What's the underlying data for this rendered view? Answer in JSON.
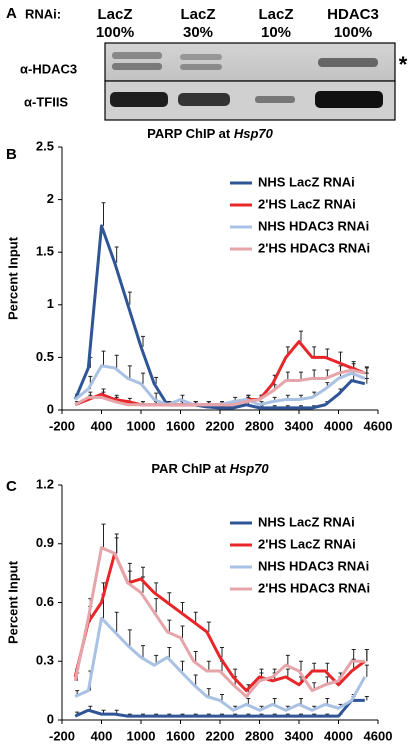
{
  "blot": {
    "panel": "A",
    "rnai_label": "RNAi:",
    "lanes": [
      {
        "name": "LacZ",
        "amount": "100%"
      },
      {
        "name": "LacZ",
        "amount": "30%"
      },
      {
        "name": "LacZ",
        "amount": "10%"
      },
      {
        "name": "HDAC3",
        "amount": "100%"
      }
    ],
    "antibodies": [
      "α-HDAC3",
      "α-TFIIS"
    ],
    "marker": "*"
  },
  "chart_data": [
    {
      "type": "line",
      "panel": "B",
      "title": "PARP ChIP at",
      "title_gene": "Hsp70",
      "y_label": "Percent Input",
      "x": [
        0,
        200,
        400,
        600,
        800,
        1000,
        1200,
        1400,
        1600,
        1800,
        2000,
        2200,
        2400,
        2600,
        2800,
        3000,
        3200,
        3400,
        3600,
        3800,
        4000,
        4200,
        4400
      ],
      "xlim": [
        -200,
        4600
      ],
      "xticks": [
        -200,
        400,
        1000,
        1600,
        2200,
        2800,
        3400,
        4000,
        4600
      ],
      "ylim": [
        0,
        2.5
      ],
      "yticks": [
        0,
        0.5,
        1,
        1.5,
        2,
        2.5
      ],
      "series": [
        {
          "name": "NHS LacZ RNAi",
          "color": "#2f5597",
          "values": [
            0.1,
            0.4,
            1.75,
            1.4,
            1.0,
            0.6,
            0.25,
            0.05,
            0.05,
            0.05,
            0.03,
            0.02,
            0.02,
            0.05,
            0.02,
            0.02,
            0.02,
            0.02,
            0.02,
            0.05,
            0.15,
            0.28,
            0.25
          ],
          "errors": [
            0.05,
            0.1,
            0.22,
            0.15,
            0.12,
            0.1,
            0.06,
            0.03,
            0.03,
            0.03,
            0.02,
            0.02,
            0.02,
            0.03,
            0.02,
            0.02,
            0.02,
            0.02,
            0.02,
            0.03,
            0.05,
            0.06,
            0.05
          ]
        },
        {
          "name": "2'HS LacZ RNAi",
          "color": "#e8262a",
          "values": [
            0.05,
            0.1,
            0.15,
            0.1,
            0.08,
            0.05,
            0.05,
            0.05,
            0.05,
            0.05,
            0.05,
            0.05,
            0.05,
            0.1,
            0.1,
            0.25,
            0.5,
            0.65,
            0.5,
            0.5,
            0.45,
            0.4,
            0.35
          ],
          "errors": [
            0.03,
            0.04,
            0.05,
            0.04,
            0.03,
            0.03,
            0.03,
            0.03,
            0.03,
            0.03,
            0.03,
            0.03,
            0.03,
            0.04,
            0.04,
            0.08,
            0.1,
            0.1,
            0.1,
            0.08,
            0.1,
            0.06,
            0.05
          ]
        },
        {
          "name": "NHS HDAC3 RNAi",
          "color": "#a9c1e3",
          "values": [
            0.1,
            0.2,
            0.42,
            0.4,
            0.3,
            0.25,
            0.1,
            0.05,
            0.1,
            0.05,
            0.05,
            0.05,
            0.08,
            0.1,
            0.05,
            0.08,
            0.1,
            0.1,
            0.12,
            0.2,
            0.3,
            0.35,
            0.3
          ],
          "errors": [
            0.04,
            0.12,
            0.14,
            0.12,
            0.12,
            0.1,
            0.06,
            0.03,
            0.04,
            0.03,
            0.03,
            0.03,
            0.04,
            0.04,
            0.03,
            0.04,
            0.04,
            0.04,
            0.05,
            0.06,
            0.06,
            0.05,
            0.05
          ]
        },
        {
          "name": "2'HS HDAC3 RNAi",
          "color": "#e6a5aa",
          "values": [
            0.05,
            0.12,
            0.12,
            0.08,
            0.05,
            0.05,
            0.05,
            0.05,
            0.05,
            0.05,
            0.05,
            0.05,
            0.05,
            0.08,
            0.1,
            0.18,
            0.28,
            0.28,
            0.3,
            0.3,
            0.35,
            0.38,
            0.35
          ],
          "errors": [
            0.03,
            0.05,
            0.05,
            0.04,
            0.03,
            0.03,
            0.03,
            0.03,
            0.03,
            0.03,
            0.03,
            0.03,
            0.03,
            0.04,
            0.04,
            0.06,
            0.08,
            0.08,
            0.08,
            0.08,
            0.07,
            0.06,
            0.06
          ]
        }
      ]
    },
    {
      "type": "line",
      "panel": "C",
      "title": "PAR ChIP at",
      "title_gene": "Hsp70",
      "y_label": "Percent Input",
      "x": [
        0,
        200,
        400,
        600,
        800,
        1000,
        1200,
        1400,
        1600,
        1800,
        2000,
        2200,
        2400,
        2600,
        2800,
        3000,
        3200,
        3400,
        3600,
        3800,
        4000,
        4200,
        4400
      ],
      "xlim": [
        -200,
        4600
      ],
      "xticks": [
        -200,
        400,
        1000,
        1600,
        2200,
        2800,
        3400,
        4000,
        4600
      ],
      "ylim": [
        0,
        1.2
      ],
      "yticks": [
        0,
        0.3,
        0.6,
        0.9,
        1.2
      ],
      "series": [
        {
          "name": "NHS LacZ RNAi",
          "color": "#2f5597",
          "values": [
            0.02,
            0.05,
            0.03,
            0.03,
            0.02,
            0.02,
            0.02,
            0.02,
            0.02,
            0.02,
            0.02,
            0.02,
            0.02,
            0.02,
            0.02,
            0.02,
            0.02,
            0.02,
            0.02,
            0.02,
            0.02,
            0.1,
            0.1
          ],
          "errors": [
            0.02,
            0.02,
            0.02,
            0.02,
            0.01,
            0.01,
            0.01,
            0.01,
            0.01,
            0.01,
            0.01,
            0.01,
            0.01,
            0.01,
            0.01,
            0.01,
            0.01,
            0.01,
            0.01,
            0.01,
            0.01,
            0.02,
            0.02
          ]
        },
        {
          "name": "2'HS LacZ RNAi",
          "color": "#e8262a",
          "values": [
            0.22,
            0.5,
            0.6,
            0.85,
            0.7,
            0.72,
            0.65,
            0.6,
            0.55,
            0.5,
            0.45,
            0.32,
            0.22,
            0.15,
            0.22,
            0.2,
            0.22,
            0.18,
            0.25,
            0.25,
            0.18,
            0.25,
            0.3
          ],
          "errors": [
            0.04,
            0.08,
            0.1,
            0.08,
            0.06,
            0.06,
            0.05,
            0.05,
            0.05,
            0.05,
            0.05,
            0.05,
            0.04,
            0.03,
            0.04,
            0.04,
            0.04,
            0.04,
            0.04,
            0.04,
            0.04,
            0.06,
            0.06
          ]
        },
        {
          "name": "NHS HDAC3 RNAi",
          "color": "#a9c1e3",
          "values": [
            0.12,
            0.15,
            0.52,
            0.45,
            0.38,
            0.32,
            0.28,
            0.32,
            0.25,
            0.18,
            0.12,
            0.1,
            0.05,
            0.08,
            0.05,
            0.08,
            0.05,
            0.08,
            0.05,
            0.08,
            0.06,
            0.1,
            0.22
          ],
          "errors": [
            0.03,
            0.1,
            0.12,
            0.1,
            0.08,
            0.06,
            0.05,
            0.05,
            0.05,
            0.05,
            0.04,
            0.03,
            0.02,
            0.03,
            0.02,
            0.03,
            0.02,
            0.03,
            0.02,
            0.03,
            0.02,
            0.03,
            0.06
          ]
        },
        {
          "name": "2'HS HDAC3 RNAi",
          "color": "#e6a5aa",
          "values": [
            0.2,
            0.52,
            0.88,
            0.85,
            0.7,
            0.65,
            0.55,
            0.45,
            0.42,
            0.3,
            0.25,
            0.25,
            0.18,
            0.12,
            0.2,
            0.22,
            0.28,
            0.25,
            0.15,
            0.18,
            0.2,
            0.3,
            0.3
          ],
          "errors": [
            0.04,
            0.1,
            0.12,
            0.1,
            0.1,
            0.08,
            0.07,
            0.06,
            0.06,
            0.05,
            0.05,
            0.05,
            0.04,
            0.04,
            0.04,
            0.04,
            0.05,
            0.05,
            0.04,
            0.04,
            0.04,
            0.06,
            0.06
          ]
        }
      ]
    }
  ]
}
